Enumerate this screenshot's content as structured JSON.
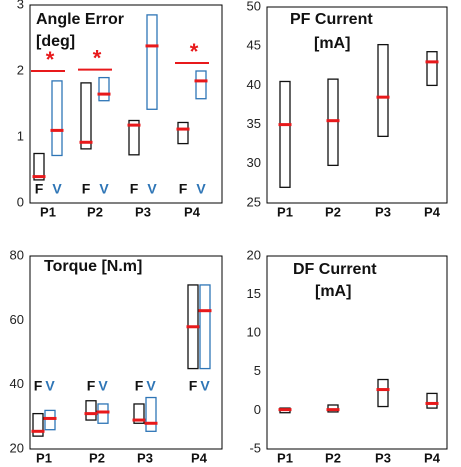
{
  "colors": {
    "box_f": "#111111",
    "box_v": "#2e75b6",
    "median": "#e8191b",
    "star": "#e8191b",
    "label_f": "#111111",
    "label_v": "#2e75b6"
  },
  "chart_data": [
    {
      "type": "box",
      "title_lines": [
        "Angle Error",
        "[deg]"
      ],
      "categories": [
        "P1",
        "P2",
        "P3",
        "P4"
      ],
      "ylim": [
        0,
        3
      ],
      "yticks": [
        0,
        1,
        2,
        3
      ],
      "group_labels": [
        "F",
        "V"
      ],
      "series": [
        {
          "label": "F",
          "lows": [
            0.35,
            0.82,
            0.73,
            0.9
          ],
          "highs": [
            0.75,
            1.82,
            1.25,
            1.22
          ],
          "medians": [
            0.4,
            0.92,
            1.18,
            1.12
          ]
        },
        {
          "label": "V",
          "lows": [
            0.72,
            1.55,
            1.42,
            1.58
          ],
          "highs": [
            1.85,
            1.9,
            2.85,
            2.0
          ],
          "medians": [
            1.1,
            1.65,
            2.38,
            1.85
          ]
        }
      ],
      "significance": [
        "*",
        "*",
        "",
        "*"
      ]
    },
    {
      "type": "box",
      "title_lines": [
        "PF Current",
        "[mA]"
      ],
      "categories": [
        "P1",
        "P2",
        "P3",
        "P4"
      ],
      "ylim": [
        25,
        50
      ],
      "yticks": [
        25,
        30,
        35,
        40,
        45,
        50
      ],
      "series": [
        {
          "lows": [
            27,
            29.8,
            33.5,
            40
          ],
          "highs": [
            40.5,
            40.8,
            45.2,
            44.3
          ],
          "medians": [
            35,
            35.5,
            38.5,
            43
          ]
        }
      ]
    },
    {
      "type": "box",
      "title_lines": [
        "Torque [N.m]"
      ],
      "categories": [
        "P1",
        "P2",
        "P3",
        "P4"
      ],
      "ylim": [
        20,
        80
      ],
      "yticks": [
        20,
        40,
        60,
        80
      ],
      "group_labels": [
        "F",
        "V"
      ],
      "series": [
        {
          "label": "F",
          "lows": [
            24,
            29,
            28,
            45
          ],
          "highs": [
            31,
            35,
            34,
            71
          ],
          "medians": [
            25.5,
            31,
            29,
            58
          ]
        },
        {
          "label": "V",
          "lows": [
            26,
            28,
            25.5,
            45
          ],
          "highs": [
            32,
            34,
            36,
            71
          ],
          "medians": [
            29.5,
            31.5,
            28,
            63
          ]
        }
      ]
    },
    {
      "type": "box",
      "title_lines": [
        "DF Current",
        "[mA]"
      ],
      "categories": [
        "P1",
        "P2",
        "P3",
        "P4"
      ],
      "ylim": [
        -5,
        20
      ],
      "yticks": [
        -5,
        0,
        5,
        10,
        15,
        20
      ],
      "series": [
        {
          "lows": [
            -0.3,
            -0.2,
            0.5,
            0.3
          ],
          "highs": [
            0.3,
            0.7,
            4,
            2.2
          ],
          "medians": [
            0.1,
            0.1,
            2.7,
            0.9
          ]
        }
      ]
    }
  ]
}
